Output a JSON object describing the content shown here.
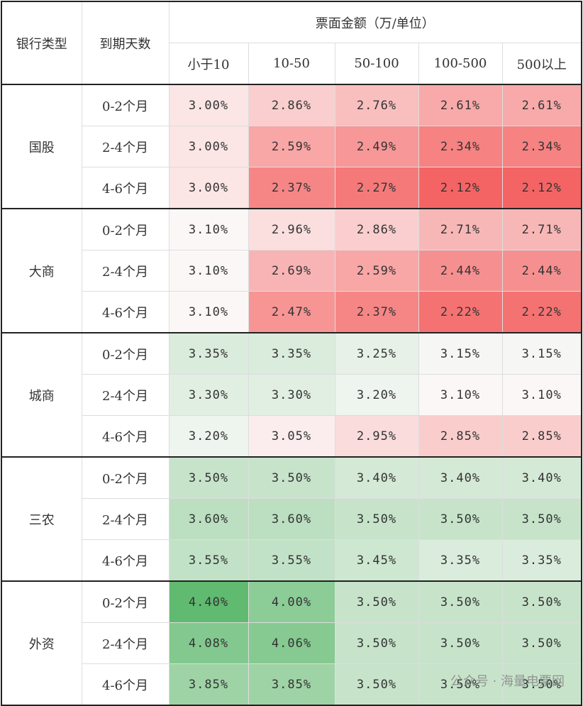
{
  "header": {
    "bank_type": "银行类型",
    "term": "到期天数",
    "amount": "票面金额（万/单位）",
    "columns": [
      "小于10",
      "10-50",
      "50-100",
      "100-500",
      "500以上"
    ]
  },
  "groups": [
    {
      "name": "国股",
      "rows": [
        {
          "term": "0-2个月",
          "values": [
            "3.00%",
            "2.86%",
            "2.76%",
            "2.61%",
            "2.61%"
          ]
        },
        {
          "term": "2-4个月",
          "values": [
            "3.00%",
            "2.59%",
            "2.49%",
            "2.34%",
            "2.34%"
          ]
        },
        {
          "term": "4-6个月",
          "values": [
            "3.00%",
            "2.37%",
            "2.27%",
            "2.12%",
            "2.12%"
          ]
        }
      ]
    },
    {
      "name": "大商",
      "rows": [
        {
          "term": "0-2个月",
          "values": [
            "3.10%",
            "2.96%",
            "2.86%",
            "2.71%",
            "2.71%"
          ]
        },
        {
          "term": "2-4个月",
          "values": [
            "3.10%",
            "2.69%",
            "2.59%",
            "2.44%",
            "2.44%"
          ]
        },
        {
          "term": "4-6个月",
          "values": [
            "3.10%",
            "2.47%",
            "2.37%",
            "2.22%",
            "2.22%"
          ]
        }
      ]
    },
    {
      "name": "城商",
      "rows": [
        {
          "term": "0-2个月",
          "values": [
            "3.35%",
            "3.35%",
            "3.25%",
            "3.15%",
            "3.15%"
          ]
        },
        {
          "term": "2-4个月",
          "values": [
            "3.30%",
            "3.30%",
            "3.20%",
            "3.10%",
            "3.10%"
          ]
        },
        {
          "term": "4-6个月",
          "values": [
            "3.20%",
            "3.05%",
            "2.95%",
            "2.85%",
            "2.85%"
          ]
        }
      ]
    },
    {
      "name": "三农",
      "rows": [
        {
          "term": "0-2个月",
          "values": [
            "3.50%",
            "3.50%",
            "3.40%",
            "3.40%",
            "3.40%"
          ]
        },
        {
          "term": "2-4个月",
          "values": [
            "3.60%",
            "3.60%",
            "3.50%",
            "3.50%",
            "3.50%"
          ]
        },
        {
          "term": "4-6个月",
          "values": [
            "3.55%",
            "3.55%",
            "3.45%",
            "3.35%",
            "3.35%"
          ]
        }
      ]
    },
    {
      "name": "外资",
      "rows": [
        {
          "term": "0-2个月",
          "values": [
            "4.40%",
            "4.00%",
            "3.50%",
            "3.50%",
            "3.50%"
          ]
        },
        {
          "term": "2-4个月",
          "values": [
            "4.08%",
            "4.06%",
            "3.50%",
            "3.50%",
            "3.50%"
          ]
        },
        {
          "term": "4-6个月",
          "values": [
            "3.85%",
            "3.85%",
            "3.50%",
            "3.50%",
            "3.50%"
          ]
        }
      ]
    }
  ],
  "watermark": "公众号 · 海量电票网"
}
